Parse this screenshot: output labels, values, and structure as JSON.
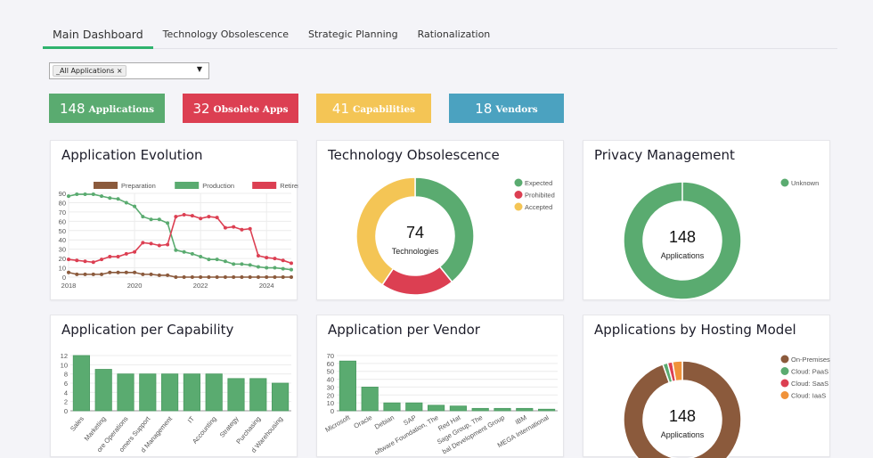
{
  "tabs": [
    "Main Dashboard",
    "Technology Obsolescence",
    "Strategic Planning",
    "Rationalization"
  ],
  "filter": {
    "chip": "_All Applications",
    "remove": "×",
    "arrow": "▼"
  },
  "kpis": [
    {
      "value": "148",
      "label": "Applications",
      "color": "#5aab70"
    },
    {
      "value": "32",
      "label": "Obsolete Apps",
      "color": "#dc3f52"
    },
    {
      "value": "41",
      "label": "Capabilities",
      "color": "#f4c555"
    },
    {
      "value": "18",
      "label": "Vendors",
      "color": "#4ba2c0"
    }
  ],
  "cards": {
    "evolution": {
      "title": "Application Evolution"
    },
    "obsolescence": {
      "title": "Technology Obsolescence",
      "center_value": "74",
      "center_label": "Technologies"
    },
    "privacy": {
      "title": "Privacy Management",
      "center_value": "148",
      "center_label": "Applications"
    },
    "capability": {
      "title": "Application per Capability"
    },
    "vendor": {
      "title": "Application per Vendor"
    },
    "hosting": {
      "title": "Applications by Hosting Model",
      "center_value": "148",
      "center_label": "Applications"
    }
  },
  "chart_data": [
    {
      "type": "line",
      "id": "evolution",
      "ylim": [
        0,
        90
      ],
      "yticks": [
        0,
        10,
        20,
        30,
        40,
        50,
        60,
        70,
        80,
        90
      ],
      "xticks": [
        "2018",
        "2020",
        "2022",
        "2024"
      ],
      "x_start": 2018,
      "x_step": 0.25,
      "grid": true,
      "legend": "top",
      "series": [
        {
          "name": "Preparation",
          "color": "#8b5a3c",
          "values": [
            5,
            3,
            3,
            3,
            3,
            5,
            5,
            5,
            5,
            3,
            3,
            2,
            2,
            0,
            0,
            0,
            0,
            0,
            0,
            0,
            0,
            0,
            0,
            0,
            0,
            0,
            0,
            0
          ]
        },
        {
          "name": "Production",
          "color": "#5aab70",
          "values": [
            87,
            89,
            89,
            89,
            87,
            85,
            84,
            80,
            76,
            65,
            62,
            62,
            58,
            29,
            27,
            25,
            22,
            19,
            19,
            17,
            14,
            14,
            13,
            11,
            10,
            10,
            9,
            8
          ]
        },
        {
          "name": "Retirement",
          "color": "#dc3f52",
          "values": [
            19,
            18,
            17,
            16,
            19,
            22,
            22,
            25,
            27,
            37,
            36,
            34,
            35,
            65,
            67,
            66,
            63,
            65,
            64,
            53,
            54,
            51,
            52,
            23,
            21,
            20,
            18,
            15
          ]
        }
      ]
    },
    {
      "type": "pie",
      "id": "obsolescence",
      "legend": "right",
      "labels": [
        "Expected",
        "Prohibited",
        "Accepted"
      ],
      "values": [
        29,
        15,
        30
      ],
      "colors": [
        "#5aab70",
        "#dc3f52",
        "#f4c555"
      ]
    },
    {
      "type": "pie",
      "id": "privacy",
      "legend": "right",
      "labels": [
        "Unknown"
      ],
      "values": [
        148
      ],
      "colors": [
        "#5aab70"
      ]
    },
    {
      "type": "bar",
      "id": "capability",
      "ylim": [
        0,
        12
      ],
      "yticks": [
        0,
        2,
        4,
        6,
        8,
        10,
        12
      ],
      "color": "#5aab70",
      "categories": [
        "Sales",
        "Marketing",
        "ore Operations",
        "omers Support",
        "d Management",
        "IT",
        "Accounting",
        "Strategy",
        "Purchasing",
        "d Warehousing"
      ],
      "values": [
        12,
        9,
        8,
        8,
        8,
        8,
        8,
        7,
        7,
        6
      ]
    },
    {
      "type": "bar",
      "id": "vendor",
      "ylim": [
        0,
        70
      ],
      "yticks": [
        0,
        10,
        20,
        30,
        40,
        50,
        60,
        70
      ],
      "color": "#5aab70",
      "categories": [
        "Microsoft",
        "Oracle",
        "Debian",
        "SAP",
        "oftware Foundation, The",
        "Red Hat",
        "Sage Group, The",
        "bal Development Group",
        "IBM",
        "MEGA International"
      ],
      "values": [
        63,
        30,
        10,
        10,
        7,
        6,
        3,
        3,
        3,
        2
      ]
    },
    {
      "type": "pie",
      "id": "hosting",
      "legend": "right",
      "labels": [
        "On-Premises",
        "Cloud: PaaS",
        "Cloud: SaaS",
        "Cloud: IaaS"
      ],
      "values": [
        140,
        2,
        2,
        4
      ],
      "colors": [
        "#8b5a3c",
        "#5aab70",
        "#dc3f52",
        "#f0923a"
      ]
    }
  ]
}
